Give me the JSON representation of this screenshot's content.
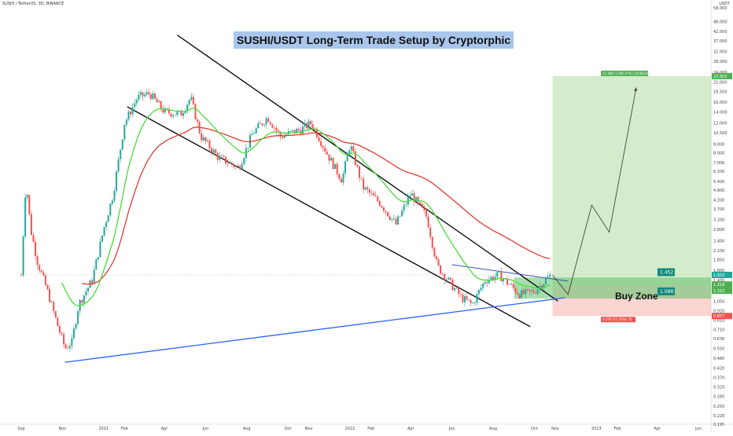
{
  "header": {
    "symbol_line": "SUSHI / TetherUS, 3D, BINANCE",
    "title": "SUSHI/USDT Long-Term Trade Setup by Cryptorphic",
    "currency": "USDT"
  },
  "annotations": {
    "buy_zone": "Buy Zone",
    "target_box": "21.080 (1786.07%) 22588.81",
    "stop_box": "0.259 (21.16%) 70"
  },
  "price_tags": {
    "top_level": "1.452",
    "bottom_level": "1.088",
    "current": "1.503",
    "current_sub": "14 1:30",
    "mid_a": "1.318",
    "mid_b": "1.310",
    "stop": "0.857",
    "target": "22.805"
  },
  "colors": {
    "bull": "#26a69a",
    "bear": "#ef5350",
    "ma_slow": "#e53935",
    "ma_fast": "#4cdb3c",
    "channel": "#111111",
    "support": "#2962ff",
    "target_zone": "#b8e0a8",
    "stop_zone": "#f5b7b1",
    "title_bg": "#a9c6ec"
  },
  "chart_data": {
    "type": "candlestick",
    "title": "SUSHI/USDT Long-Term Trade Setup by Cryptorphic",
    "xlabel": "",
    "ylabel": "",
    "y_scale": "log",
    "x_ticks": [
      "Sep",
      "Nov",
      "2021",
      "Feb",
      "Apr",
      "Jun",
      "Aug",
      "Oct",
      "Nov",
      "2022",
      "Feb",
      "Apr",
      "Jun",
      "Aug",
      "Oct",
      "Nov",
      "2023",
      "Feb",
      "Apr",
      "Jun"
    ],
    "y_ticks": [
      "58.000",
      "48.000",
      "42.000",
      "37.000",
      "32.000",
      "28.000",
      "24.000",
      "21.000",
      "18.500",
      "16.000",
      "14.000",
      "12.000",
      "10.500",
      "9.000",
      "8.000",
      "7.000",
      "6.200",
      "5.400",
      "4.800",
      "4.200",
      "3.700",
      "3.200",
      "2.800",
      "2.400",
      "2.100",
      "1.850",
      "1.600",
      "1.400",
      "1.200",
      "1.050",
      "0.920",
      "0.810",
      "0.710",
      "0.630",
      "0.550",
      "0.480",
      "0.420",
      "0.370",
      "0.325",
      "0.285",
      "0.250",
      "0.220",
      "0.195"
    ],
    "price_path": [
      {
        "date": "2020-09-01",
        "close": 1.5
      },
      {
        "date": "2020-09-08",
        "close": 5.5
      },
      {
        "date": "2020-09-15",
        "close": 2.8
      },
      {
        "date": "2020-09-25",
        "close": 1.8
      },
      {
        "date": "2020-10-10",
        "close": 1.2
      },
      {
        "date": "2020-10-25",
        "close": 0.75
      },
      {
        "date": "2020-11-05",
        "close": 0.55
      },
      {
        "date": "2020-11-15",
        "close": 0.6
      },
      {
        "date": "2020-11-25",
        "close": 1.0
      },
      {
        "date": "2020-12-15",
        "close": 1.4
      },
      {
        "date": "2021-01-01",
        "close": 2.8
      },
      {
        "date": "2021-01-15",
        "close": 4.5
      },
      {
        "date": "2021-02-01",
        "close": 12.0
      },
      {
        "date": "2021-02-20",
        "close": 17.0
      },
      {
        "date": "2021-03-10",
        "close": 18.0
      },
      {
        "date": "2021-04-01",
        "close": 14.0
      },
      {
        "date": "2021-04-25",
        "close": 13.5
      },
      {
        "date": "2021-05-10",
        "close": 17.0
      },
      {
        "date": "2021-05-25",
        "close": 10.0
      },
      {
        "date": "2021-06-20",
        "close": 7.5
      },
      {
        "date": "2021-07-20",
        "close": 6.5
      },
      {
        "date": "2021-08-10",
        "close": 10.5
      },
      {
        "date": "2021-09-01",
        "close": 13.0
      },
      {
        "date": "2021-09-20",
        "close": 10.0
      },
      {
        "date": "2021-10-20",
        "close": 11.0
      },
      {
        "date": "2021-11-05",
        "close": 12.0
      },
      {
        "date": "2021-12-01",
        "close": 7.5
      },
      {
        "date": "2021-12-20",
        "close": 5.5
      },
      {
        "date": "2022-01-01",
        "close": 9.0
      },
      {
        "date": "2022-01-20",
        "close": 5.0
      },
      {
        "date": "2022-02-15",
        "close": 4.0
      },
      {
        "date": "2022-03-10",
        "close": 3.0
      },
      {
        "date": "2022-04-01",
        "close": 4.6
      },
      {
        "date": "2022-04-25",
        "close": 3.3
      },
      {
        "date": "2022-05-10",
        "close": 1.7
      },
      {
        "date": "2022-06-15",
        "close": 1.1
      },
      {
        "date": "2022-07-01",
        "close": 1.0
      },
      {
        "date": "2022-07-20",
        "close": 1.4
      },
      {
        "date": "2022-08-10",
        "close": 1.5
      },
      {
        "date": "2022-09-10",
        "close": 1.15
      },
      {
        "date": "2022-10-01",
        "close": 1.2
      },
      {
        "date": "2022-10-25",
        "close": 1.5
      }
    ],
    "overlays": [
      {
        "kind": "moving_average_slow",
        "color": "#e53935"
      },
      {
        "kind": "moving_average_fast",
        "color": "#4cdb3c"
      },
      {
        "kind": "channel_upper",
        "color": "#111111"
      },
      {
        "kind": "channel_lower",
        "color": "#111111"
      },
      {
        "kind": "support_trendline",
        "color": "#2962ff"
      }
    ],
    "trade_setup": {
      "buy_zone": [
        1.088,
        1.452
      ],
      "target": 22.805,
      "stop": 0.857
    }
  }
}
